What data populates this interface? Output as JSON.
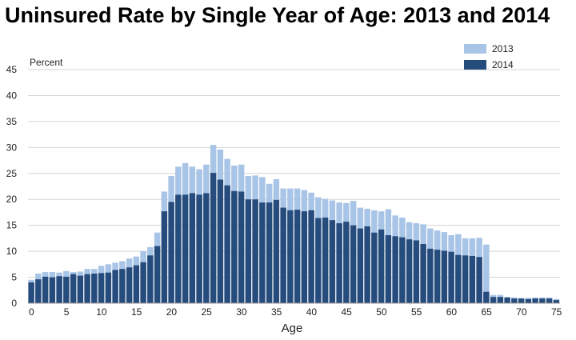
{
  "chart_data": {
    "type": "bar",
    "title": "Uninsured Rate by Single Year of Age: 2013 and 2014",
    "xlabel": "Age",
    "ylabel": "Percent",
    "ylim": [
      0,
      45
    ],
    "xlim": [
      0,
      75
    ],
    "yticks": [
      "0",
      "5",
      "10",
      "15",
      "20",
      "25",
      "30",
      "35",
      "40",
      "45"
    ],
    "xticks": [
      "0",
      "5",
      "10",
      "15",
      "20",
      "25",
      "30",
      "35",
      "40",
      "45",
      "50",
      "55",
      "60",
      "65",
      "70",
      "75"
    ],
    "grid": true,
    "legend_position": "top-right",
    "overlay": true,
    "colors": {
      "2013": "#a8c4e6",
      "2014": "#264c7d",
      "grid": "#d4d4d4"
    },
    "x": [
      0,
      1,
      2,
      3,
      4,
      5,
      6,
      7,
      8,
      9,
      10,
      11,
      12,
      13,
      14,
      15,
      16,
      17,
      18,
      19,
      20,
      21,
      22,
      23,
      24,
      25,
      26,
      27,
      28,
      29,
      30,
      31,
      32,
      33,
      34,
      35,
      36,
      37,
      38,
      39,
      40,
      41,
      42,
      43,
      44,
      45,
      46,
      47,
      48,
      49,
      50,
      51,
      52,
      53,
      54,
      55,
      56,
      57,
      58,
      59,
      60,
      61,
      62,
      63,
      64,
      65,
      66,
      67,
      68,
      69,
      70,
      71,
      72,
      73,
      74,
      75
    ],
    "series": [
      {
        "name": "2013",
        "values": [
          4.5,
          5.7,
          6.0,
          6.0,
          5.9,
          6.2,
          6.0,
          6.1,
          6.6,
          6.6,
          7.2,
          7.5,
          7.8,
          8.1,
          8.6,
          9.0,
          10.0,
          10.8,
          13.6,
          21.5,
          24.5,
          26.3,
          27.0,
          26.3,
          25.8,
          26.7,
          30.5,
          29.6,
          27.8,
          26.5,
          26.7,
          24.5,
          24.6,
          24.3,
          23.0,
          23.9,
          22.1,
          22.1,
          22.1,
          21.8,
          21.3,
          20.4,
          20.1,
          19.8,
          19.4,
          19.3,
          19.7,
          18.4,
          18.2,
          17.9,
          17.7,
          18.1,
          16.9,
          16.5,
          15.6,
          15.4,
          15.2,
          14.4,
          14.0,
          13.7,
          13.1,
          13.3,
          12.5,
          12.5,
          12.6,
          11.3,
          1.6,
          1.6,
          1.2,
          1.1,
          1.0,
          1.0,
          1.1,
          1.1,
          1.1,
          0.8
        ]
      },
      {
        "name": "2014",
        "values": [
          4.0,
          4.6,
          5.1,
          5.0,
          5.2,
          5.1,
          5.6,
          5.3,
          5.6,
          5.7,
          5.8,
          5.9,
          6.4,
          6.6,
          6.9,
          7.3,
          7.9,
          9.2,
          11.0,
          17.7,
          19.5,
          20.9,
          20.9,
          21.2,
          20.9,
          21.2,
          25.1,
          23.8,
          22.7,
          21.6,
          21.5,
          20.0,
          20.0,
          19.4,
          19.4,
          19.9,
          18.4,
          17.9,
          18.0,
          17.7,
          17.9,
          16.4,
          16.5,
          16.0,
          15.4,
          15.7,
          15.0,
          14.4,
          14.8,
          13.6,
          14.2,
          13.1,
          12.9,
          12.7,
          12.3,
          12.1,
          11.4,
          10.5,
          10.3,
          10.1,
          9.9,
          9.3,
          9.2,
          9.1,
          8.9,
          2.2,
          1.2,
          1.2,
          1.1,
          0.9,
          0.9,
          0.8,
          0.9,
          0.9,
          0.9,
          0.6
        ]
      }
    ]
  }
}
